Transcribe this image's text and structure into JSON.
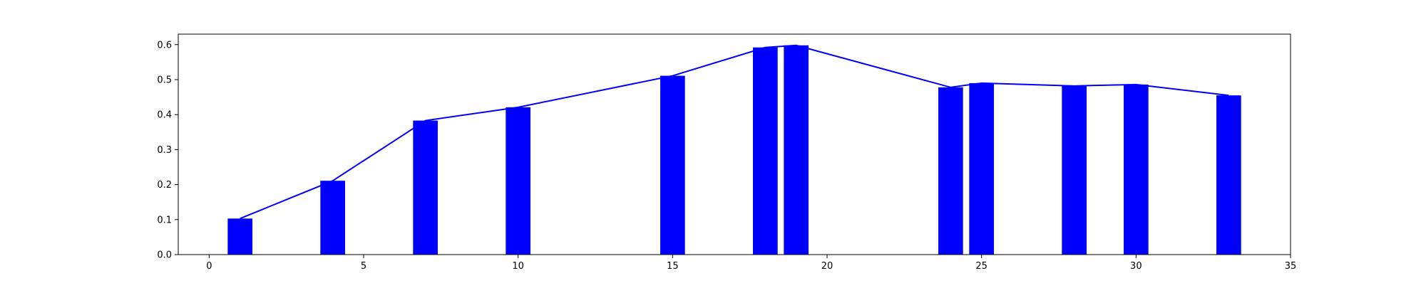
{
  "chart_data": {
    "type": "bar",
    "title": "",
    "xlabel": "",
    "ylabel": "",
    "x": [
      1,
      4,
      7,
      10,
      15,
      18,
      19,
      24,
      25,
      28,
      30,
      33
    ],
    "series": [
      {
        "type": "bar",
        "values": [
          0.103,
          0.211,
          0.383,
          0.421,
          0.511,
          0.592,
          0.598,
          0.478,
          0.49,
          0.482,
          0.486,
          0.455
        ],
        "color": "#0000ff"
      },
      {
        "type": "line",
        "values": [
          0.103,
          0.211,
          0.383,
          0.421,
          0.511,
          0.592,
          0.598,
          0.478,
          0.49,
          0.482,
          0.486,
          0.455
        ],
        "color": "#0000ff"
      }
    ],
    "xlim": [
      -1,
      35
    ],
    "ylim": [
      0,
      0.63
    ],
    "xticks": [
      0,
      5,
      10,
      15,
      20,
      25,
      30,
      35
    ],
    "xtick_labels": [
      "0",
      "5",
      "10",
      "15",
      "20",
      "25",
      "30",
      "35"
    ],
    "yticks": [
      0.0,
      0.1,
      0.2,
      0.3,
      0.4,
      0.5,
      0.6
    ],
    "ytick_labels": [
      "0.0",
      "0.1",
      "0.2",
      "0.3",
      "0.4",
      "0.5",
      "0.6"
    ],
    "bar_width": 0.8,
    "grid": false,
    "legend": "none"
  }
}
